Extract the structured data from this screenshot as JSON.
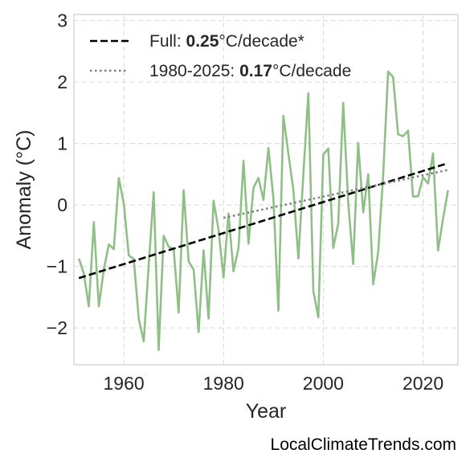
{
  "chart_data": {
    "type": "line",
    "xlabel": "Year",
    "ylabel": "Anomaly (°C)",
    "xlim": [
      1950,
      2027
    ],
    "ylim": [
      -2.6,
      3.1
    ],
    "xticks": [
      1960,
      1980,
      2000,
      2020
    ],
    "yticks": [
      -2,
      -1,
      0,
      1,
      2,
      3
    ],
    "ytick_labels": [
      "−2",
      "−1",
      "0",
      "1",
      "2",
      "3"
    ],
    "grid": true,
    "legend_position": "top-left",
    "credit": "LocalClimateTrends.com",
    "colors": {
      "series": "#8fbf87",
      "trend_full": "#000000",
      "trend_recent": "#808080",
      "grid": "#d9d9d9",
      "frame": "#cccccc"
    },
    "legend": [
      {
        "prefix": "Full: ",
        "value": "0.25",
        "suffix": "°C/decade*",
        "style": "dashed"
      },
      {
        "prefix": "1980-2025: ",
        "value": "0.17",
        "suffix": "°C/decade",
        "style": "dotted"
      }
    ],
    "series": [
      {
        "x": [
          1951,
          1952,
          1953,
          1954,
          1955,
          1956,
          1957,
          1958,
          1959,
          1960,
          1961,
          1962,
          1963,
          1964,
          1965,
          1966,
          1967,
          1968,
          1969,
          1970,
          1971,
          1972,
          1973,
          1974,
          1975,
          1976,
          1977,
          1978,
          1979,
          1980,
          1981,
          1982,
          1983,
          1984,
          1985,
          1986,
          1987,
          1988,
          1989,
          1990,
          1991,
          1992,
          1993,
          1994,
          1995,
          1996,
          1997,
          1998,
          1999,
          2000,
          2001,
          2002,
          2003,
          2004,
          2005,
          2006,
          2007,
          2008,
          2009,
          2010,
          2011,
          2012,
          2013,
          2014,
          2015,
          2016,
          2017,
          2018,
          2019,
          2020,
          2021,
          2022,
          2023,
          2024,
          2025
        ],
        "y": [
          -0.87,
          -1.12,
          -1.65,
          -0.28,
          -1.65,
          -1.05,
          -0.64,
          -0.72,
          0.44,
          0.02,
          -0.82,
          -0.88,
          -1.85,
          -2.22,
          -0.98,
          0.21,
          -2.36,
          -0.5,
          -0.68,
          -0.72,
          -1.75,
          0.24,
          -0.92,
          -1.05,
          -2.07,
          -0.74,
          -1.85,
          0.07,
          -0.4,
          -1.18,
          -0.14,
          -1.08,
          -0.7,
          0.72,
          -0.63,
          0.28,
          0.44,
          0.08,
          0.93,
          0.11,
          -1.72,
          1.45,
          0.84,
          0.25,
          -0.87,
          0.5,
          1.82,
          -1.4,
          -1.83,
          0.82,
          0.92,
          -0.7,
          -0.3,
          1.66,
          0.05,
          -0.96,
          1.01,
          -0.12,
          0.5,
          -1.29,
          -0.77,
          0.48,
          2.17,
          2.08,
          1.15,
          1.12,
          1.21,
          0.14,
          0.14,
          0.45,
          0.35,
          0.84,
          -0.74,
          -0.23,
          0.24
        ]
      }
    ],
    "trends": [
      {
        "x": [
          1951,
          2025
        ],
        "y": [
          -1.19,
          0.68
        ],
        "style": "dashed"
      },
      {
        "x": [
          1980,
          2025
        ],
        "y": [
          -0.21,
          0.57
        ],
        "style": "dotted"
      }
    ]
  }
}
